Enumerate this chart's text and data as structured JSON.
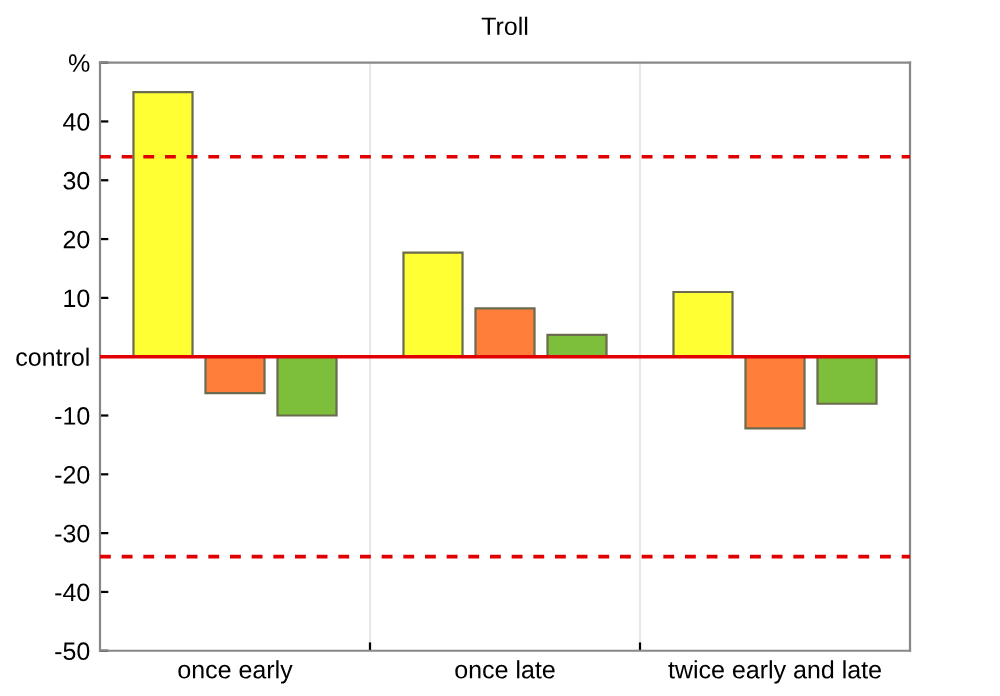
{
  "chart_data": {
    "type": "bar",
    "title": "Troll",
    "categories": [
      "once early",
      "once late",
      "twice early and late"
    ],
    "series": [
      {
        "color": "#ffff33",
        "values": [
          45,
          17.7,
          11
        ]
      },
      {
        "color": "#ff7f3a",
        "values": [
          -6.2,
          8.2,
          -12.2
        ]
      },
      {
        "color": "#7dbf3a",
        "values": [
          -10,
          3.7,
          -8
        ]
      }
    ],
    "ylim": [
      -50,
      50
    ],
    "yticks": [
      -50,
      -40,
      -30,
      -20,
      -10,
      {
        "value": 0,
        "label": "control"
      },
      10,
      20,
      30,
      40,
      {
        "value": 50,
        "label": "%"
      }
    ],
    "ref_lines": [
      {
        "axis": "y",
        "value": 0,
        "color": "#e00000",
        "line_style": "solid"
      },
      {
        "axis": "y",
        "value": 34,
        "color": "#e00000",
        "line_style": "dashed"
      },
      {
        "axis": "y",
        "value": -34,
        "color": "#e00000",
        "line_style": "dashed"
      }
    ],
    "grid": "x",
    "legend": false
  }
}
